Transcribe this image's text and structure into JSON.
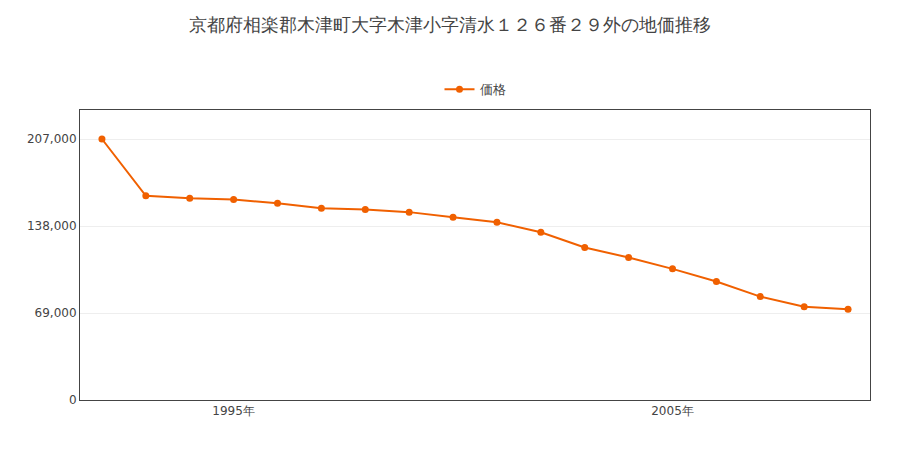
{
  "chart_data": {
    "type": "line",
    "title": "京都府相楽郡木津町大字木津小字清水１２６番２９外の地価推移",
    "x": [
      1992,
      1993,
      1994,
      1995,
      1996,
      1997,
      1998,
      1999,
      2000,
      2001,
      2002,
      2003,
      2004,
      2005,
      2006,
      2007,
      2008,
      2009
    ],
    "series": [
      {
        "name": "価格",
        "color": "#f06000",
        "marker": "circle",
        "line_style": "solid",
        "values": [
          207000,
          162000,
          160000,
          159000,
          156000,
          152000,
          151000,
          149000,
          145000,
          141000,
          133000,
          121000,
          113000,
          104000,
          94000,
          82000,
          74000,
          72000
        ]
      }
    ],
    "xlim": [
      1991.5,
      2009.5
    ],
    "xticks": [
      {
        "value": 1995,
        "label": "1995年"
      },
      {
        "value": 2005,
        "label": "2005年"
      }
    ],
    "ylim": [
      0,
      230000
    ],
    "yticks": [
      0,
      {
        "value": 69000,
        "label": "69,000"
      },
      {
        "value": 138000,
        "label": "138,000"
      },
      {
        "value": 207000,
        "label": "207,000"
      }
    ],
    "grid": true,
    "legend": "upper center"
  }
}
